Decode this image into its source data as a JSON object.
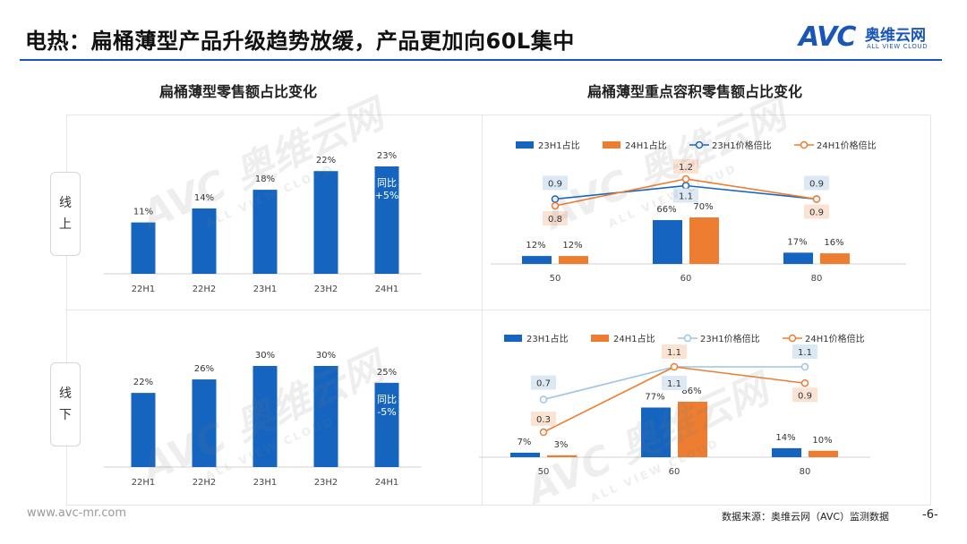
{
  "header": {
    "title": "电热：扁桶薄型产品升级趋势放缓，产品更加向60L集中",
    "logo_text": "AVC",
    "logo_cn": "奥维云网",
    "logo_en": "ALL VIEW CLOUD"
  },
  "left_title": "扁桶薄型零售额占比变化",
  "right_title": "扁桶薄型重点容积零售额占比变化",
  "row_labels": {
    "online": [
      "线",
      "上"
    ],
    "offline": [
      "线",
      "下"
    ]
  },
  "watermark": {
    "big": "AVC 奥维云网",
    "small": "ALL VIEW CLOUD"
  },
  "colors": {
    "blue": "#1565C0",
    "orange": "#ED7D31",
    "lightblue": "#9DC3E6",
    "brand": "#1A56B8"
  },
  "chart_data": [
    {
      "id": "online_share",
      "type": "bar",
      "title": "扁桶薄型零售额占比变化 - 线上",
      "categories": [
        "22H1",
        "22H2",
        "23H1",
        "23H2",
        "24H1"
      ],
      "values": [
        11,
        14,
        18,
        22,
        23
      ],
      "labels": [
        "11%",
        "14%",
        "18%",
        "22%",
        "23%"
      ],
      "annotation": {
        "category": "24H1",
        "text": [
          "同比",
          "+5%"
        ]
      },
      "ylim": [
        0,
        23
      ]
    },
    {
      "id": "offline_share",
      "type": "bar",
      "title": "扁桶薄型零售额占比变化 - 线下",
      "categories": [
        "22H1",
        "22H2",
        "23H1",
        "23H2",
        "24H1"
      ],
      "values": [
        22,
        26,
        30,
        30,
        25
      ],
      "labels": [
        "22%",
        "26%",
        "30%",
        "30%",
        "25%"
      ],
      "annotation": {
        "category": "24H1",
        "text": [
          "同比",
          "-5%"
        ]
      },
      "ylim": [
        0,
        30
      ]
    },
    {
      "id": "online_capacity",
      "type": "bar+line",
      "title": "扁桶薄型重点容积零售额占比变化 - 线上",
      "categories": [
        "50",
        "60",
        "80"
      ],
      "bar_series": [
        {
          "name": "23H1占比",
          "values": [
            12,
            66,
            17
          ],
          "labels": [
            "12%",
            "66%",
            "17%"
          ]
        },
        {
          "name": "24H1占比",
          "values": [
            12,
            70,
            16
          ],
          "labels": [
            "12%",
            "70%",
            "16%"
          ]
        }
      ],
      "line_series": [
        {
          "name": "23H1价格倍比",
          "values": [
            0.9,
            1.1,
            0.9
          ],
          "labels": [
            "0.9",
            "1.1",
            "0.9"
          ]
        },
        {
          "name": "24H1价格倍比",
          "values": [
            0.8,
            1.2,
            0.9
          ],
          "labels": [
            "0.8",
            "1.2",
            "0.9"
          ]
        }
      ],
      "legend": [
        "23H1占比",
        "24H1占比",
        "23H1价格倍比",
        "24H1价格倍比"
      ]
    },
    {
      "id": "offline_capacity",
      "type": "bar+line",
      "title": "扁桶薄型重点容积零售额占比变化 - 线下",
      "categories": [
        "50",
        "60",
        "80"
      ],
      "bar_series": [
        {
          "name": "23H1占比",
          "values": [
            7,
            77,
            14
          ],
          "labels": [
            "7%",
            "77%",
            "14%"
          ]
        },
        {
          "name": "24H1占比",
          "values": [
            3,
            86,
            10
          ],
          "labels": [
            "3%",
            "86%",
            "10%"
          ]
        }
      ],
      "line_series": [
        {
          "name": "23H1价格倍比",
          "values": [
            0.7,
            1.1,
            1.1
          ],
          "labels": [
            "0.7",
            "1.1",
            "1.1"
          ]
        },
        {
          "name": "24H1价格倍比",
          "values": [
            0.3,
            1.1,
            0.9
          ],
          "labels": [
            "0.3",
            "1.1",
            "0.9"
          ]
        }
      ],
      "legend": [
        "23H1占比",
        "24H1占比",
        "23H1价格倍比",
        "24H1价格倍比"
      ]
    }
  ],
  "footer": {
    "website": "www.avc-mr.com",
    "source": "数据来源：奥维云网（AVC）监测数据",
    "page": "-6-"
  }
}
